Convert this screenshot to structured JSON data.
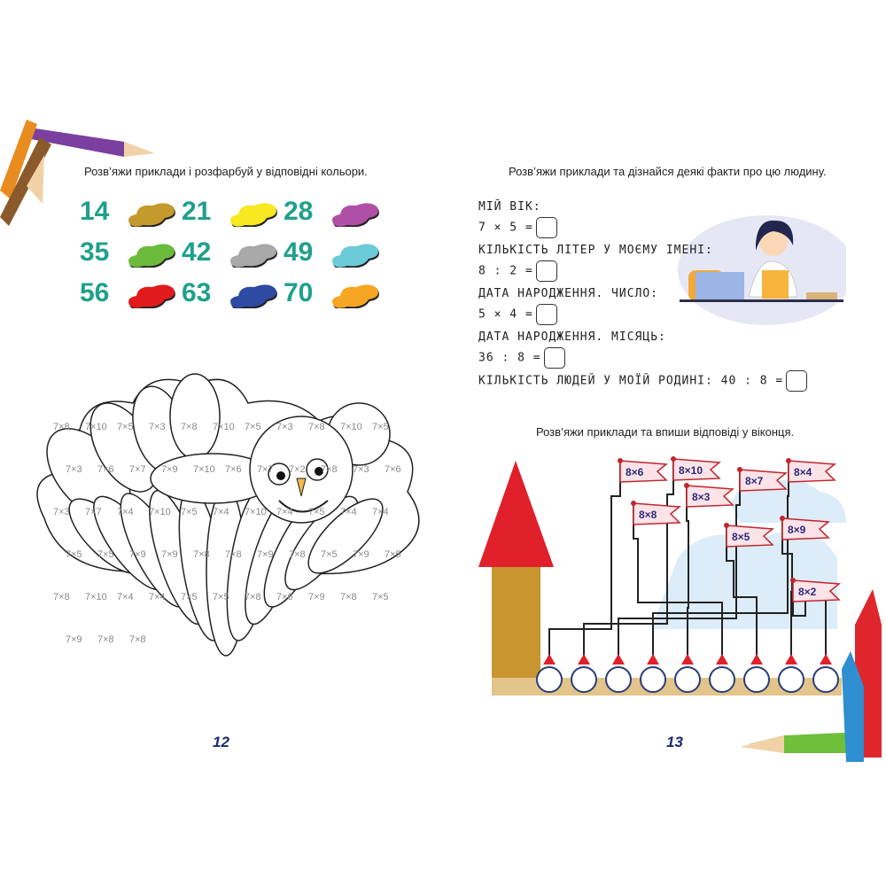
{
  "left_page": {
    "instruction": "Розв’яжи приклади і розфарбуй у відповідні кольори.",
    "color_key": [
      {
        "number": "14",
        "color": "#c49a2c"
      },
      {
        "number": "21",
        "color": "#f7e81f"
      },
      {
        "number": "28",
        "color": "#b04fa6"
      },
      {
        "number": "35",
        "color": "#6cbb3c"
      },
      {
        "number": "42",
        "color": "#a9a9a9"
      },
      {
        "number": "49",
        "color": "#6ccbd8"
      },
      {
        "number": "56",
        "color": "#e11b1b"
      },
      {
        "number": "63",
        "color": "#2e4aa3"
      },
      {
        "number": "70",
        "color": "#f6a623"
      }
    ],
    "owl_labels": [
      "7×8",
      "7×10",
      "7×5",
      "7×3",
      "7×8",
      "7×10",
      "7×5",
      "7×3",
      "7×8",
      "7×10",
      "7×5",
      "7×3",
      "7×6",
      "7×7",
      "7×9",
      "7×10",
      "7×6",
      "7×7",
      "7×2",
      "7×8",
      "7×3",
      "7×6",
      "7×3",
      "7×7",
      "7×4",
      "7×10",
      "7×5",
      "7×4",
      "7×10",
      "7×4",
      "7×5",
      "7×4",
      "7×4",
      "7×5",
      "7×5",
      "7×9",
      "7×9",
      "7×8",
      "7×8",
      "7×9",
      "7×8",
      "7×5",
      "7×9",
      "7×5",
      "7×8",
      "7×10",
      "7×4",
      "7×4",
      "7×5",
      "7×5",
      "7×8",
      "7×6",
      "7×9",
      "7×8",
      "7×5",
      "7×9",
      "7×8",
      "7×8"
    ],
    "page_number": "12"
  },
  "right_page": {
    "instruction1": "Розв’яжи приклади та дізнайся деякі факти про цю людину.",
    "facts": [
      {
        "label": "МІЙ ВІК:",
        "expr": "7 × 5 ="
      },
      {
        "label": "КІЛЬКІСТЬ ЛІТЕР У МОЄМУ ІМЕНІ:",
        "expr": "8 : 2 ="
      },
      {
        "label": "ДАТА НАРОДЖЕННЯ. ЧИСЛО:",
        "expr": "5 × 4 ="
      },
      {
        "label": "ДАТА НАРОДЖЕННЯ. МІСЯЦЬ:",
        "expr": "36 : 8 ="
      }
    ],
    "last_fact": "КІЛЬКІСТЬ ЛЮДЕЙ У МОЇЙ РОДИНІ: 40 : 8 =",
    "instruction2": "Розв’яжи приклади та впиши відповіді у віконця.",
    "flags": [
      "8×6",
      "8×10",
      "8×7",
      "8×4",
      "8×3",
      "8×8",
      "8×5",
      "8×9",
      "8×2"
    ],
    "answer_windows": 9,
    "page_number": "13"
  },
  "colors": {
    "teal": "#1fa08c",
    "flag_red": "#c0262d",
    "tower_red": "#e0202a",
    "tower_brown": "#c9952f",
    "navy": "#1a2a6c"
  }
}
